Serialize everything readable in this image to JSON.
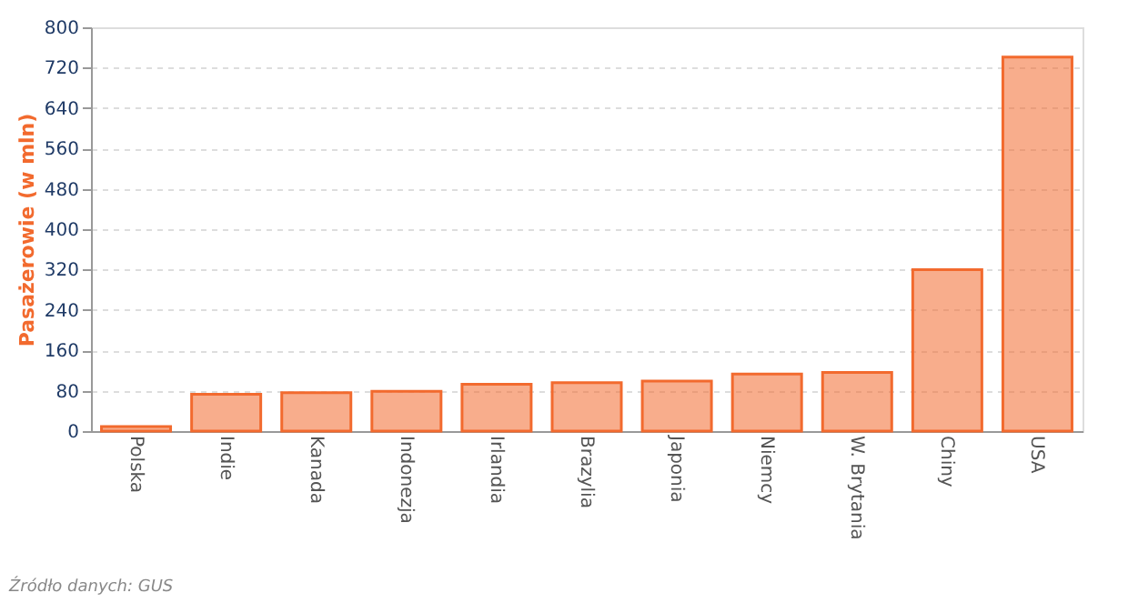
{
  "chart_data": {
    "type": "bar",
    "ylabel": "Pasażerowie (w mln)",
    "categories": [
      "Polska",
      "Indie",
      "Kanada",
      "Indonezja",
      "Irlandia",
      "Brazylia",
      "Japonia",
      "Niemcy",
      "W. Brytania",
      "Chiny",
      "USA"
    ],
    "values": [
      9,
      73,
      76,
      79,
      93,
      96,
      99,
      113,
      116,
      320,
      741
    ],
    "color": "#f26a2e",
    "ylim": [
      0,
      800
    ],
    "yticks": [
      0,
      80,
      160,
      240,
      320,
      400,
      480,
      560,
      640,
      720,
      800
    ],
    "grid": "y",
    "annotations": [
      "Źródło danych: GUS"
    ]
  }
}
